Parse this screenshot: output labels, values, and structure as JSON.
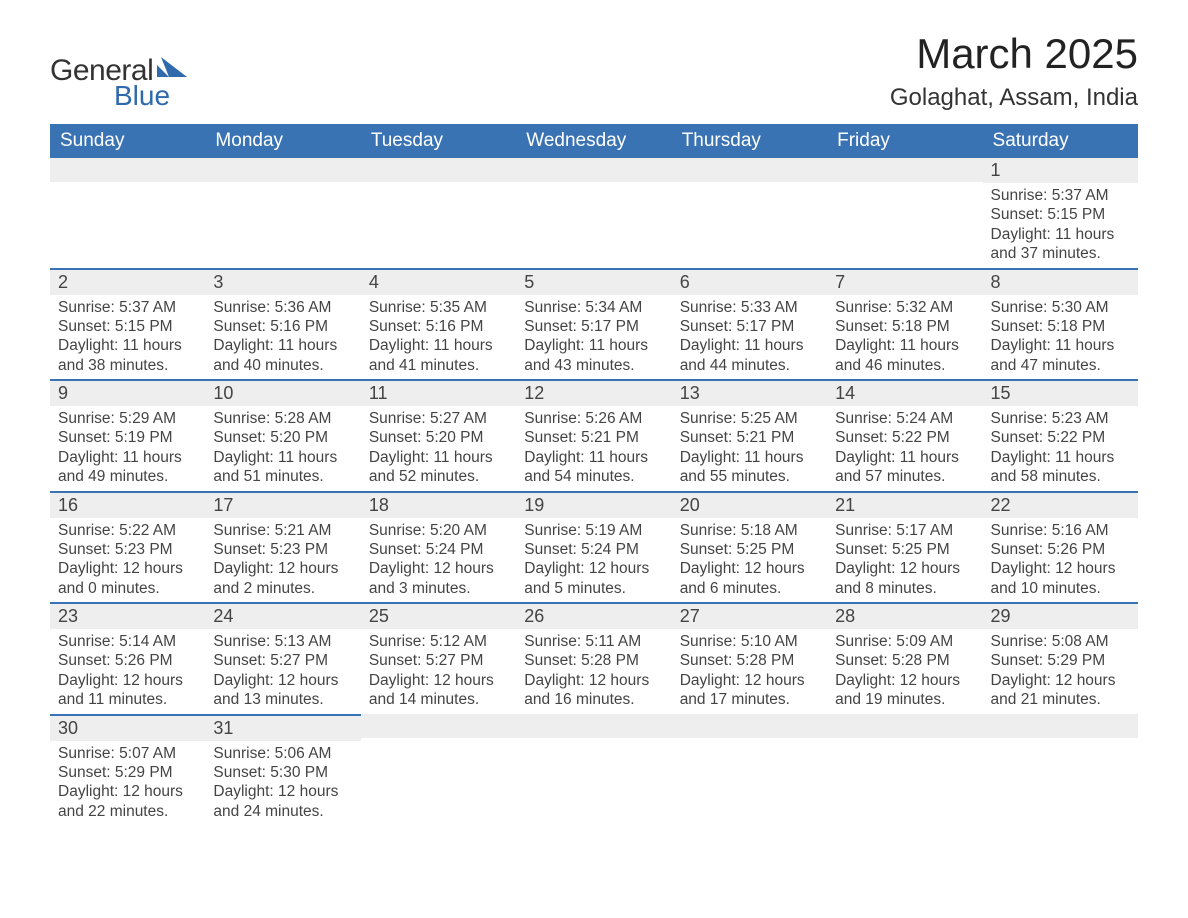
{
  "logo": {
    "text_top": "General",
    "text_bottom": "Blue",
    "shape_color": "#2f6aad"
  },
  "title": "March 2025",
  "location": "Golaghat, Assam, India",
  "colors": {
    "header_bg": "#3a73b3",
    "header_text": "#ffffff",
    "bar_bg": "#eeeeee",
    "divider": "#3a73b3",
    "text": "#444444"
  },
  "day_headers": [
    "Sunday",
    "Monday",
    "Tuesday",
    "Wednesday",
    "Thursday",
    "Friday",
    "Saturday"
  ],
  "weeks": [
    [
      null,
      null,
      null,
      null,
      null,
      null,
      {
        "n": "1",
        "sunrise": "5:37 AM",
        "sunset": "5:15 PM",
        "daylight": "11 hours and 37 minutes."
      }
    ],
    [
      {
        "n": "2",
        "sunrise": "5:37 AM",
        "sunset": "5:15 PM",
        "daylight": "11 hours and 38 minutes."
      },
      {
        "n": "3",
        "sunrise": "5:36 AM",
        "sunset": "5:16 PM",
        "daylight": "11 hours and 40 minutes."
      },
      {
        "n": "4",
        "sunrise": "5:35 AM",
        "sunset": "5:16 PM",
        "daylight": "11 hours and 41 minutes."
      },
      {
        "n": "5",
        "sunrise": "5:34 AM",
        "sunset": "5:17 PM",
        "daylight": "11 hours and 43 minutes."
      },
      {
        "n": "6",
        "sunrise": "5:33 AM",
        "sunset": "5:17 PM",
        "daylight": "11 hours and 44 minutes."
      },
      {
        "n": "7",
        "sunrise": "5:32 AM",
        "sunset": "5:18 PM",
        "daylight": "11 hours and 46 minutes."
      },
      {
        "n": "8",
        "sunrise": "5:30 AM",
        "sunset": "5:18 PM",
        "daylight": "11 hours and 47 minutes."
      }
    ],
    [
      {
        "n": "9",
        "sunrise": "5:29 AM",
        "sunset": "5:19 PM",
        "daylight": "11 hours and 49 minutes."
      },
      {
        "n": "10",
        "sunrise": "5:28 AM",
        "sunset": "5:20 PM",
        "daylight": "11 hours and 51 minutes."
      },
      {
        "n": "11",
        "sunrise": "5:27 AM",
        "sunset": "5:20 PM",
        "daylight": "11 hours and 52 minutes."
      },
      {
        "n": "12",
        "sunrise": "5:26 AM",
        "sunset": "5:21 PM",
        "daylight": "11 hours and 54 minutes."
      },
      {
        "n": "13",
        "sunrise": "5:25 AM",
        "sunset": "5:21 PM",
        "daylight": "11 hours and 55 minutes."
      },
      {
        "n": "14",
        "sunrise": "5:24 AM",
        "sunset": "5:22 PM",
        "daylight": "11 hours and 57 minutes."
      },
      {
        "n": "15",
        "sunrise": "5:23 AM",
        "sunset": "5:22 PM",
        "daylight": "11 hours and 58 minutes."
      }
    ],
    [
      {
        "n": "16",
        "sunrise": "5:22 AM",
        "sunset": "5:23 PM",
        "daylight": "12 hours and 0 minutes."
      },
      {
        "n": "17",
        "sunrise": "5:21 AM",
        "sunset": "5:23 PM",
        "daylight": "12 hours and 2 minutes."
      },
      {
        "n": "18",
        "sunrise": "5:20 AM",
        "sunset": "5:24 PM",
        "daylight": "12 hours and 3 minutes."
      },
      {
        "n": "19",
        "sunrise": "5:19 AM",
        "sunset": "5:24 PM",
        "daylight": "12 hours and 5 minutes."
      },
      {
        "n": "20",
        "sunrise": "5:18 AM",
        "sunset": "5:25 PM",
        "daylight": "12 hours and 6 minutes."
      },
      {
        "n": "21",
        "sunrise": "5:17 AM",
        "sunset": "5:25 PM",
        "daylight": "12 hours and 8 minutes."
      },
      {
        "n": "22",
        "sunrise": "5:16 AM",
        "sunset": "5:26 PM",
        "daylight": "12 hours and 10 minutes."
      }
    ],
    [
      {
        "n": "23",
        "sunrise": "5:14 AM",
        "sunset": "5:26 PM",
        "daylight": "12 hours and 11 minutes."
      },
      {
        "n": "24",
        "sunrise": "5:13 AM",
        "sunset": "5:27 PM",
        "daylight": "12 hours and 13 minutes."
      },
      {
        "n": "25",
        "sunrise": "5:12 AM",
        "sunset": "5:27 PM",
        "daylight": "12 hours and 14 minutes."
      },
      {
        "n": "26",
        "sunrise": "5:11 AM",
        "sunset": "5:28 PM",
        "daylight": "12 hours and 16 minutes."
      },
      {
        "n": "27",
        "sunrise": "5:10 AM",
        "sunset": "5:28 PM",
        "daylight": "12 hours and 17 minutes."
      },
      {
        "n": "28",
        "sunrise": "5:09 AM",
        "sunset": "5:28 PM",
        "daylight": "12 hours and 19 minutes."
      },
      {
        "n": "29",
        "sunrise": "5:08 AM",
        "sunset": "5:29 PM",
        "daylight": "12 hours and 21 minutes."
      }
    ],
    [
      {
        "n": "30",
        "sunrise": "5:07 AM",
        "sunset": "5:29 PM",
        "daylight": "12 hours and 22 minutes."
      },
      {
        "n": "31",
        "sunrise": "5:06 AM",
        "sunset": "5:30 PM",
        "daylight": "12 hours and 24 minutes."
      },
      null,
      null,
      null,
      null,
      null
    ]
  ],
  "labels": {
    "sunrise": "Sunrise:",
    "sunset": "Sunset:",
    "daylight": "Daylight:"
  }
}
